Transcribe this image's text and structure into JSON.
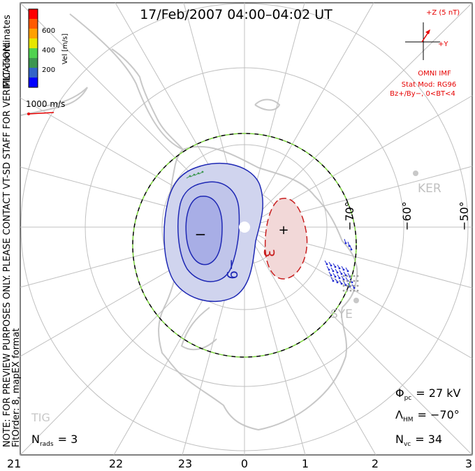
{
  "title": "17/Feb/2007 04:00–04:02 UT",
  "side_notes": {
    "coords": "MLT coordinates",
    "preview": "NOTE: FOR PREVIEW PURPOSES ONLY. PLEASE CONTACT VT-SD STAFF FOR VERIFICATION.",
    "fit": "FitOrder: 8, mapEX format"
  },
  "velocity_scale": {
    "label": "Vel [m/s]",
    "ticks": [
      "600",
      "400",
      "200"
    ],
    "colors": [
      "#ff0000",
      "#ff5a00",
      "#ffa000",
      "#e6e600",
      "#50d250",
      "#3c9650",
      "#3264c8",
      "#0000ff"
    ]
  },
  "vector_reference": {
    "label": "1000 m/s",
    "color": "#e60000"
  },
  "imf": {
    "z_label": "+Z (5 nT)",
    "y_label": "+Y",
    "omni": "OMNI IMF",
    "model": "Stat Mod: RG96",
    "condition": "Bz+/By−, 0<BT<4",
    "color": "#e60000"
  },
  "latitude_labels": [
    "−70°",
    "−60°",
    "−50°"
  ],
  "contour_labels": {
    "neg": "−9",
    "pos": "3",
    "neg_sign": "−",
    "pos_sign": "+"
  },
  "stations": [
    "KER",
    "SYE",
    "TIG"
  ],
  "mlt_ticks": [
    "21",
    "22",
    "23",
    "0",
    "1",
    "2",
    "3"
  ],
  "stats": {
    "phi_symbol": "Φ",
    "phi_sub": "pc",
    "phi_value": "= 27 kV",
    "lambda_symbol": "Λ",
    "lambda_sub": "HM",
    "lambda_value": "= −70°",
    "nvc_symbol": "N",
    "nvc_sub": "vc",
    "nvc_value": "= 34",
    "nrads_symbol": "N",
    "nrads_sub": "rads",
    "nrads_value": "= 3"
  },
  "colors": {
    "grid": "#c0c0c0",
    "land": "#c8c8c8",
    "neg_contour": "#1e28b4",
    "pos_contour": "#c81e1e",
    "neg_fill": "#d0d4ee",
    "neg_fill_inner": "#a8aee6",
    "pos_fill": "#f2d8d8",
    "hmb_dash": "#7ad23c"
  }
}
